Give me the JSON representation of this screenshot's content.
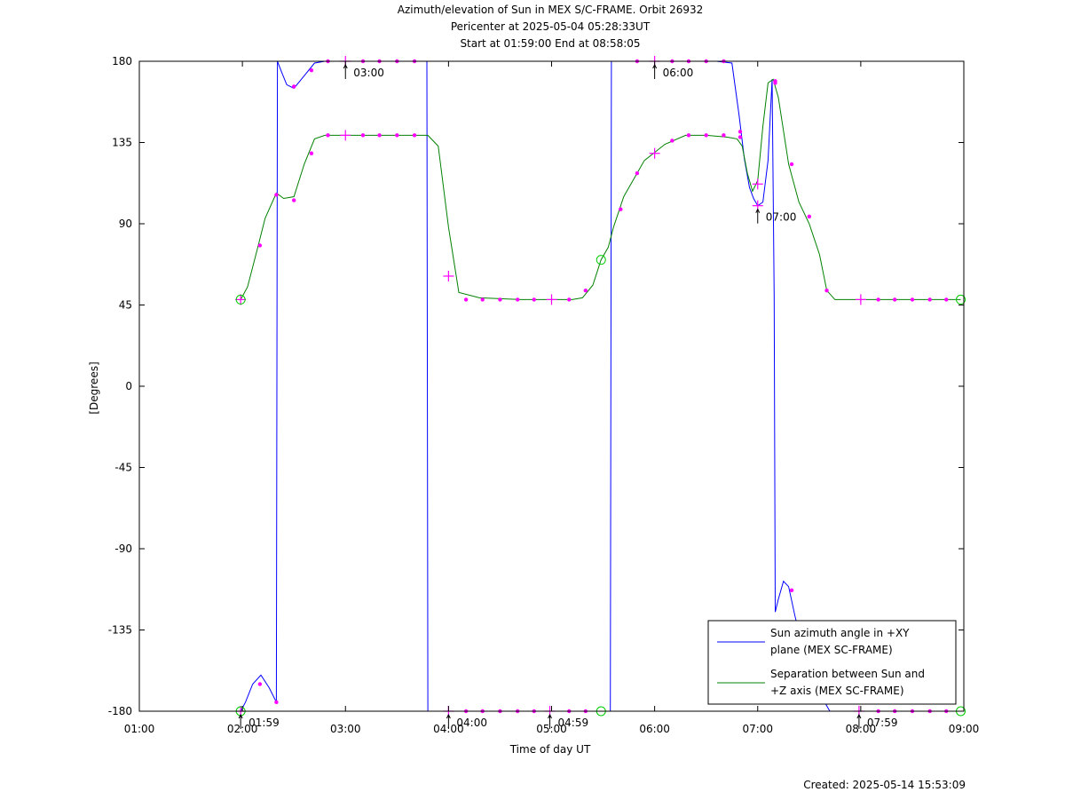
{
  "chart_data": {
    "type": "line",
    "title": "Azimuth/elevation of Sun in MEX S/C-FRAME.  Orbit 26932",
    "subtitle_lines": [
      "Pericenter at 2025-05-04 05:28:33UT",
      "Start at 01:59:00 End at 08:58:05"
    ],
    "xlabel": "Time of day UT",
    "ylabel": "[Degrees]",
    "created": "Created: 2025-05-14 15:53:09",
    "x_unit": "hours of day",
    "xlim": [
      1,
      9
    ],
    "ylim": [
      -180,
      180
    ],
    "x_ticks": [
      "01:00",
      "02:00",
      "03:00",
      "04:00",
      "05:00",
      "06:00",
      "07:00",
      "08:00",
      "09:00"
    ],
    "y_ticks": [
      "180",
      "135",
      "90",
      "45",
      "0",
      "-45",
      "-90",
      "-135",
      "-180"
    ],
    "legend": {
      "placement": "bottom-right"
    },
    "series": [
      {
        "name": "Sun azimuth angle in +XY plane (MEX SC-FRAME)",
        "label_lines": [
          "Sun azimuth angle in +XY",
          "plane (MEX SC-FRAME)"
        ],
        "color": "#0000ff",
        "x": [
          1.983,
          2.03,
          2.1,
          2.18,
          2.26,
          2.33,
          2.34,
          2.38,
          2.43,
          2.5,
          2.6,
          2.7,
          2.8,
          3.0,
          3.7,
          3.79,
          3.8,
          3.9,
          4.0,
          4.5,
          5.0,
          5.47,
          5.57,
          5.58,
          5.7,
          6.0,
          6.6,
          6.75,
          6.82,
          6.87,
          6.92,
          6.96,
          7.0,
          7.05,
          7.1,
          7.14,
          7.16,
          7.17,
          7.2,
          7.25,
          7.3,
          7.36,
          7.5,
          7.7,
          7.8,
          8.0,
          8.5,
          8.97
        ],
        "y": [
          -180,
          -175,
          -165,
          -160,
          -167,
          -175,
          180,
          174,
          167,
          165,
          172,
          179,
          180,
          180,
          180,
          180,
          -180,
          -180,
          -180,
          -180,
          -180,
          -180,
          -180,
          180,
          180,
          180,
          180,
          179,
          150,
          126,
          110,
          104,
          100,
          102,
          125,
          170,
          50,
          -125,
          -118,
          -108,
          -111,
          -127,
          -160,
          -180,
          -180,
          -180,
          -180,
          -180
        ]
      },
      {
        "name": "Separation between Sun and +Z axis (MEX SC-FRAME)",
        "label_lines": [
          "Separation between Sun and",
          "+Z axis (MEX SC-FRAME)"
        ],
        "color": "#008000",
        "x": [
          1.983,
          2.05,
          2.15,
          2.22,
          2.33,
          2.4,
          2.5,
          2.6,
          2.7,
          2.8,
          2.9,
          3.0,
          3.7,
          3.8,
          3.9,
          4.0,
          4.1,
          4.3,
          4.7,
          5.0,
          5.2,
          5.3,
          5.4,
          5.48,
          5.55,
          5.6,
          5.7,
          5.9,
          6.1,
          6.3,
          6.5,
          6.7,
          6.8,
          6.85,
          6.9,
          6.95,
          7.0,
          7.05,
          7.1,
          7.15,
          7.2,
          7.3,
          7.4,
          7.5,
          7.6,
          7.67,
          7.75,
          8.0,
          8.97
        ],
        "y": [
          48,
          55,
          77,
          93,
          107,
          104,
          105,
          123,
          137,
          139,
          139,
          139,
          139,
          139,
          133,
          88,
          52,
          49,
          48,
          48,
          48,
          49,
          56,
          70,
          77,
          88,
          105,
          125,
          134,
          139,
          139,
          138,
          137,
          133,
          118,
          108,
          114,
          144,
          168,
          170,
          160,
          123,
          102,
          90,
          73,
          53,
          48,
          48,
          48
        ]
      }
    ],
    "annotations": [
      {
        "text": "01:59",
        "x": 1.983,
        "y": -180,
        "dir": "below"
      },
      {
        "text": "03:00",
        "x": 3.0,
        "y": 180,
        "dir": "below"
      },
      {
        "text": "04:00",
        "x": 4.0,
        "y": -180,
        "dir": "below"
      },
      {
        "text": "04:59",
        "x": 4.983,
        "y": -180,
        "dir": "below"
      },
      {
        "text": "06:00",
        "x": 6.0,
        "y": 180,
        "dir": "below"
      },
      {
        "text": "07:00",
        "x": 7.0,
        "y": 100,
        "dir": "below"
      },
      {
        "text": "07:59",
        "x": 7.983,
        "y": -180,
        "dir": "below"
      }
    ],
    "markers": {
      "color": "#ff00ff",
      "circle_color": "#00cc00",
      "crosses": [
        {
          "x": 1.983,
          "y": 48
        },
        {
          "x": 3.0,
          "y": 139
        },
        {
          "x": 4.0,
          "y": 61
        },
        {
          "x": 5.0,
          "y": 48
        },
        {
          "x": 6.0,
          "y": 129
        },
        {
          "x": 7.0,
          "y": 112
        },
        {
          "x": 8.0,
          "y": 48
        },
        {
          "x": 3.0,
          "y": 180
        },
        {
          "x": 6.0,
          "y": 180
        },
        {
          "x": 7.0,
          "y": 100
        },
        {
          "x": 1.983,
          "y": -180
        },
        {
          "x": 4.0,
          "y": -180
        },
        {
          "x": 4.983,
          "y": -180
        },
        {
          "x": 7.983,
          "y": -180
        }
      ],
      "circles": [
        {
          "x": 1.983,
          "y": 48
        },
        {
          "x": 5.48,
          "y": 70
        },
        {
          "x": 8.97,
          "y": 48
        },
        {
          "x": 1.983,
          "y": -180
        },
        {
          "x": 5.48,
          "y": -180
        },
        {
          "x": 8.97,
          "y": -180
        }
      ],
      "dots": [
        {
          "x": 2.17,
          "y": 78
        },
        {
          "x": 2.33,
          "y": 106
        },
        {
          "x": 2.5,
          "y": 103
        },
        {
          "x": 2.67,
          "y": 129
        },
        {
          "x": 2.83,
          "y": 139
        },
        {
          "x": 3.17,
          "y": 139
        },
        {
          "x": 3.33,
          "y": 139
        },
        {
          "x": 3.5,
          "y": 139
        },
        {
          "x": 3.67,
          "y": 139
        },
        {
          "x": 4.17,
          "y": 48
        },
        {
          "x": 4.33,
          "y": 48
        },
        {
          "x": 4.5,
          "y": 48
        },
        {
          "x": 4.67,
          "y": 48
        },
        {
          "x": 4.83,
          "y": 48
        },
        {
          "x": 5.17,
          "y": 48
        },
        {
          "x": 5.33,
          "y": 53
        },
        {
          "x": 5.67,
          "y": 98
        },
        {
          "x": 5.83,
          "y": 118
        },
        {
          "x": 6.17,
          "y": 136
        },
        {
          "x": 6.33,
          "y": 139
        },
        {
          "x": 6.5,
          "y": 139
        },
        {
          "x": 6.67,
          "y": 139
        },
        {
          "x": 6.83,
          "y": 138
        },
        {
          "x": 7.17,
          "y": 169
        },
        {
          "x": 7.33,
          "y": 123
        },
        {
          "x": 7.5,
          "y": 94
        },
        {
          "x": 7.67,
          "y": 53
        },
        {
          "x": 8.17,
          "y": 48
        },
        {
          "x": 8.33,
          "y": 48
        },
        {
          "x": 8.5,
          "y": 48
        },
        {
          "x": 8.67,
          "y": 48
        },
        {
          "x": 8.83,
          "y": 48
        },
        {
          "x": 2.17,
          "y": -165
        },
        {
          "x": 2.33,
          "y": -175
        },
        {
          "x": 2.5,
          "y": 166
        },
        {
          "x": 2.67,
          "y": 175
        },
        {
          "x": 2.83,
          "y": 180
        },
        {
          "x": 3.17,
          "y": 180
        },
        {
          "x": 3.33,
          "y": 180
        },
        {
          "x": 3.5,
          "y": 180
        },
        {
          "x": 3.67,
          "y": 180
        },
        {
          "x": 4.17,
          "y": -180
        },
        {
          "x": 4.33,
          "y": -180
        },
        {
          "x": 4.5,
          "y": -180
        },
        {
          "x": 4.67,
          "y": -180
        },
        {
          "x": 4.83,
          "y": -180
        },
        {
          "x": 5.17,
          "y": -180
        },
        {
          "x": 5.33,
          "y": -180
        },
        {
          "x": 5.83,
          "y": 180
        },
        {
          "x": 6.17,
          "y": 180
        },
        {
          "x": 6.33,
          "y": 180
        },
        {
          "x": 6.5,
          "y": 180
        },
        {
          "x": 6.67,
          "y": 180
        },
        {
          "x": 6.83,
          "y": 141
        },
        {
          "x": 7.17,
          "y": 168
        },
        {
          "x": 7.33,
          "y": -113
        },
        {
          "x": 8.17,
          "y": -180
        },
        {
          "x": 8.33,
          "y": -180
        },
        {
          "x": 8.5,
          "y": -180
        },
        {
          "x": 8.67,
          "y": -180
        },
        {
          "x": 8.83,
          "y": -180
        }
      ]
    }
  }
}
